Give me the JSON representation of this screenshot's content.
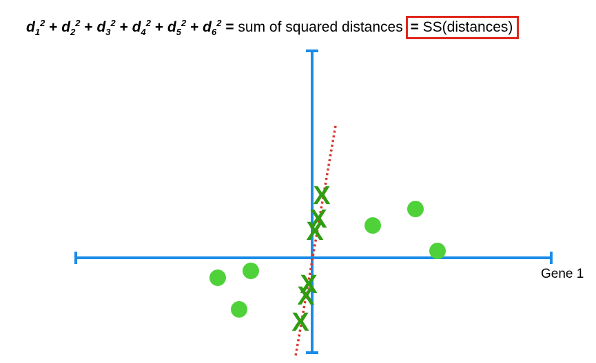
{
  "equation": {
    "terms": [
      {
        "var": "d",
        "sub": "1",
        "sup": "2"
      },
      {
        "var": "d",
        "sub": "2",
        "sup": "2"
      },
      {
        "var": "d",
        "sub": "3",
        "sup": "2"
      },
      {
        "var": "d",
        "sub": "4",
        "sup": "2"
      },
      {
        "var": "d",
        "sub": "5",
        "sup": "2"
      },
      {
        "var": "d",
        "sub": "6",
        "sup": "2"
      }
    ],
    "plus": "+",
    "equals": "=",
    "description": "sum of squared distances",
    "boxed_equals": "=",
    "boxed_text": "SS(distances)"
  },
  "axis_label": "Gene 1",
  "colors": {
    "axis": "#1a8be8",
    "points": "#4fd13a",
    "projections": "#2f9c12",
    "fit_line": "#d9342b",
    "highlight_box": "#e0261c"
  },
  "icons": {
    "projection_marker": "X"
  }
}
